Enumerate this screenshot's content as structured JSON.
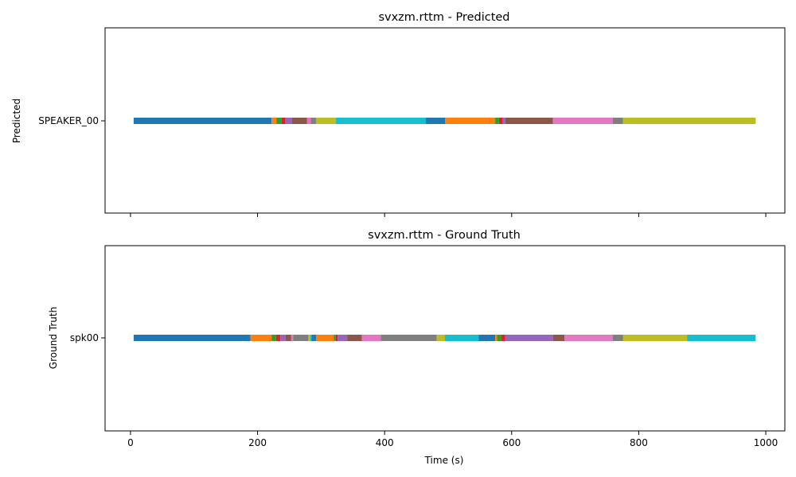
{
  "chart_data": [
    {
      "type": "timeline",
      "title": "svxzm.rttm - Predicted",
      "ylabel": "Predicted",
      "xlabel": "",
      "xlim": [
        -40,
        1030
      ],
      "xticks": [
        0,
        200,
        400,
        600,
        800,
        1000
      ],
      "show_xtick_labels": false,
      "grid": false,
      "tracks": [
        "SPEAKER_00"
      ],
      "segments": [
        {
          "track": "SPEAKER_00",
          "start": 5,
          "end": 222,
          "color": "#1f77b4"
        },
        {
          "track": "SPEAKER_00",
          "start": 222,
          "end": 230,
          "color": "#ff7f0e"
        },
        {
          "track": "SPEAKER_00",
          "start": 230,
          "end": 238,
          "color": "#2ca02c"
        },
        {
          "track": "SPEAKER_00",
          "start": 238,
          "end": 244,
          "color": "#d62728"
        },
        {
          "track": "SPEAKER_00",
          "start": 244,
          "end": 254,
          "color": "#9467bd"
        },
        {
          "track": "SPEAKER_00",
          "start": 254,
          "end": 278,
          "color": "#8c564b"
        },
        {
          "track": "SPEAKER_00",
          "start": 278,
          "end": 284,
          "color": "#e377c2"
        },
        {
          "track": "SPEAKER_00",
          "start": 284,
          "end": 292,
          "color": "#7f7f7f"
        },
        {
          "track": "SPEAKER_00",
          "start": 292,
          "end": 323,
          "color": "#bcbd22"
        },
        {
          "track": "SPEAKER_00",
          "start": 323,
          "end": 465,
          "color": "#17becf"
        },
        {
          "track": "SPEAKER_00",
          "start": 465,
          "end": 495,
          "color": "#1f77b4"
        },
        {
          "track": "SPEAKER_00",
          "start": 495,
          "end": 574,
          "color": "#ff7f0e"
        },
        {
          "track": "SPEAKER_00",
          "start": 574,
          "end": 580,
          "color": "#2ca02c"
        },
        {
          "track": "SPEAKER_00",
          "start": 580,
          "end": 586,
          "color": "#d62728"
        },
        {
          "track": "SPEAKER_00",
          "start": 586,
          "end": 590,
          "color": "#9467bd"
        },
        {
          "track": "SPEAKER_00",
          "start": 590,
          "end": 665,
          "color": "#8c564b"
        },
        {
          "track": "SPEAKER_00",
          "start": 665,
          "end": 759,
          "color": "#e377c2"
        },
        {
          "track": "SPEAKER_00",
          "start": 759,
          "end": 775,
          "color": "#7f7f7f"
        },
        {
          "track": "SPEAKER_00",
          "start": 775,
          "end": 984,
          "color": "#bcbd22"
        }
      ]
    },
    {
      "type": "timeline",
      "title": "svxzm.rttm - Ground Truth",
      "ylabel": "Ground Truth",
      "xlabel": "Time (s)",
      "xlim": [
        -40,
        1030
      ],
      "xticks": [
        0,
        200,
        400,
        600,
        800,
        1000
      ],
      "show_xtick_labels": true,
      "grid": false,
      "tracks": [
        "spk00"
      ],
      "segments": [
        {
          "track": "spk00",
          "start": 5,
          "end": 189,
          "color": "#1f77b4"
        },
        {
          "track": "spk00",
          "start": 189,
          "end": 222,
          "color": "#ff7f0e"
        },
        {
          "track": "spk00",
          "start": 222,
          "end": 229,
          "color": "#2ca02c"
        },
        {
          "track": "spk00",
          "start": 229,
          "end": 236,
          "color": "#d62728"
        },
        {
          "track": "spk00",
          "start": 236,
          "end": 244,
          "color": "#9467bd"
        },
        {
          "track": "spk00",
          "start": 244,
          "end": 253,
          "color": "#8c564b"
        },
        {
          "track": "spk00",
          "start": 253,
          "end": 256,
          "color": "#e377c2"
        },
        {
          "track": "spk00",
          "start": 256,
          "end": 280,
          "color": "#7f7f7f"
        },
        {
          "track": "spk00",
          "start": 280,
          "end": 283,
          "color": "#bcbd22"
        },
        {
          "track": "spk00",
          "start": 283,
          "end": 285,
          "color": "#17becf"
        },
        {
          "track": "spk00",
          "start": 285,
          "end": 292,
          "color": "#1f77b4"
        },
        {
          "track": "spk00",
          "start": 292,
          "end": 320,
          "color": "#ff7f0e"
        },
        {
          "track": "spk00",
          "start": 320,
          "end": 323,
          "color": "#2ca02c"
        },
        {
          "track": "spk00",
          "start": 323,
          "end": 326,
          "color": "#d62728"
        },
        {
          "track": "spk00",
          "start": 326,
          "end": 341,
          "color": "#9467bd"
        },
        {
          "track": "spk00",
          "start": 341,
          "end": 364,
          "color": "#8c564b"
        },
        {
          "track": "spk00",
          "start": 364,
          "end": 394,
          "color": "#e377c2"
        },
        {
          "track": "spk00",
          "start": 394,
          "end": 482,
          "color": "#7f7f7f"
        },
        {
          "track": "spk00",
          "start": 482,
          "end": 495,
          "color": "#bcbd22"
        },
        {
          "track": "spk00",
          "start": 495,
          "end": 548,
          "color": "#17becf"
        },
        {
          "track": "spk00",
          "start": 548,
          "end": 574,
          "color": "#1f77b4"
        },
        {
          "track": "spk00",
          "start": 574,
          "end": 577,
          "color": "#ff7f0e"
        },
        {
          "track": "spk00",
          "start": 577,
          "end": 584,
          "color": "#2ca02c"
        },
        {
          "track": "spk00",
          "start": 584,
          "end": 590,
          "color": "#d62728"
        },
        {
          "track": "spk00",
          "start": 590,
          "end": 665,
          "color": "#9467bd"
        },
        {
          "track": "spk00",
          "start": 665,
          "end": 683,
          "color": "#8c564b"
        },
        {
          "track": "spk00",
          "start": 683,
          "end": 759,
          "color": "#e377c2"
        },
        {
          "track": "spk00",
          "start": 759,
          "end": 775,
          "color": "#7f7f7f"
        },
        {
          "track": "spk00",
          "start": 775,
          "end": 876,
          "color": "#bcbd22"
        },
        {
          "track": "spk00",
          "start": 876,
          "end": 984,
          "color": "#17becf"
        }
      ]
    }
  ]
}
